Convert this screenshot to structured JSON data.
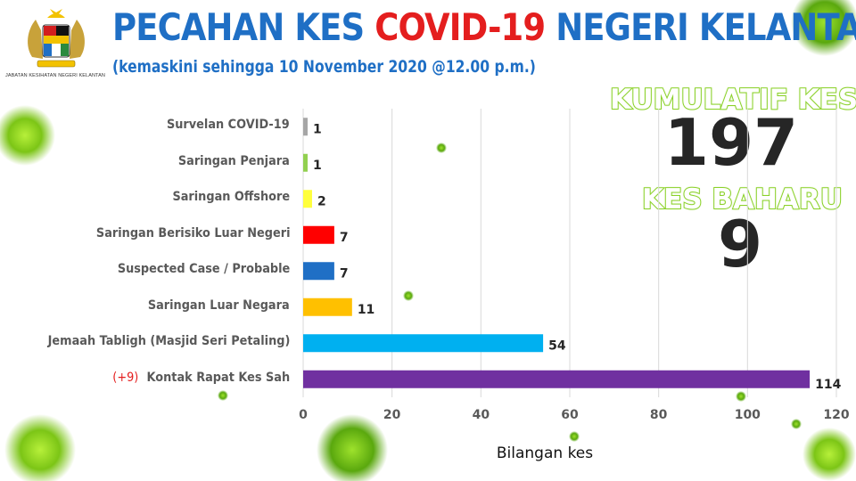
{
  "header": {
    "title_part1": "PECAHAN KES ",
    "title_part2": "COVID-19",
    "title_part3": " NEGERI KELANTAN",
    "subtitle": "(kemaskini sehingga 10 November 2020 @12.00 p.m.)",
    "logo_caption": "JABATAN KESIHATAN NEGERI KELANTAN"
  },
  "stats": {
    "cumulative_label": "KUMULATIF KES",
    "cumulative_value": "197",
    "new_label": "KES BAHARU",
    "new_value": "9"
  },
  "chart_data": {
    "type": "bar",
    "orientation": "horizontal",
    "categories": [
      "Survelan COVID-19",
      "Saringan Penjara",
      "Saringan Offshore",
      "Saringan Berisiko Luar Negeri",
      "Suspected Case / Probable",
      "Saringan Luar Negara",
      "Jemaah Tabligh (Masjid Seri Petaling)",
      "Kontak Rapat Kes Sah"
    ],
    "category_prefixes": [
      "",
      "",
      "",
      "",
      "",
      "",
      "",
      "(+9)"
    ],
    "values": [
      1,
      1,
      2,
      7,
      7,
      11,
      54,
      114
    ],
    "bar_colors": [
      "#a6a6a6",
      "#92d050",
      "#ffff3c",
      "#ff0000",
      "#1f6fc5",
      "#ffc000",
      "#00b0f0",
      "#7030a0"
    ],
    "xlabel": "Bilangan kes",
    "xlim": [
      0,
      120
    ],
    "xticks": [
      0,
      20,
      40,
      60,
      80,
      100,
      120
    ],
    "grid": "vertical"
  },
  "colors": {
    "title_blue": "#1f6fc5",
    "title_red": "#e41e1e",
    "stat_outline": "#8bd12a"
  }
}
